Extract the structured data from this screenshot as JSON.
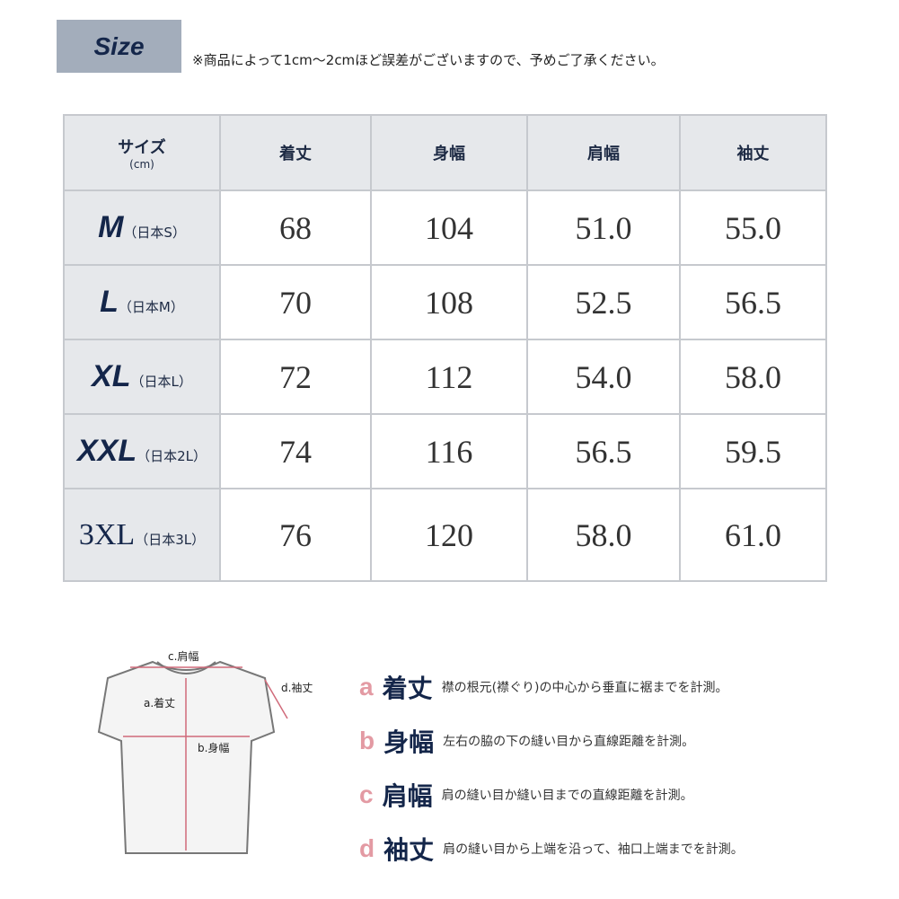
{
  "header": {
    "badge": "Size",
    "note": "※商品によって1cm〜2cmほど誤差がございますので、予めご了承ください。"
  },
  "table": {
    "size_label": "サイズ",
    "unit": "(cm)",
    "columns": [
      "着丈",
      "身幅",
      "肩幅",
      "袖丈"
    ],
    "rows": [
      {
        "size": "M",
        "jp": "（日本S）",
        "values": [
          "68",
          "104",
          "51.0",
          "55.0"
        ]
      },
      {
        "size": "L",
        "jp": "（日本M）",
        "values": [
          "70",
          "108",
          "52.5",
          "56.5"
        ]
      },
      {
        "size": "XL",
        "jp": "（日本L）",
        "values": [
          "72",
          "112",
          "54.0",
          "58.0"
        ]
      },
      {
        "size": "XXL",
        "jp": "（日本2L）",
        "values": [
          "74",
          "116",
          "56.5",
          "59.5"
        ]
      },
      {
        "size": "3XL",
        "jp": "（日本3L）",
        "values": [
          "76",
          "120",
          "58.0",
          "61.0"
        ]
      }
    ]
  },
  "diagram": {
    "labels": {
      "c": "c.肩幅",
      "a": "a.着丈",
      "b": "b.身幅",
      "d": "d.袖丈"
    }
  },
  "legend": [
    {
      "letter": "a",
      "term": "着丈",
      "desc": "襟の根元(襟ぐり)の中心から垂直に裾までを計測。"
    },
    {
      "letter": "b",
      "term": "身幅",
      "desc": "左右の脇の下の縫い目から直線距離を計測。"
    },
    {
      "letter": "c",
      "term": "肩幅",
      "desc": "肩の縫い目か縫い目までの直線距離を計測。"
    },
    {
      "letter": "d",
      "term": "袖丈",
      "desc": "肩の縫い目から上端を沿って、袖口上端までを計測。"
    }
  ],
  "colors": {
    "navy": "#14264a",
    "accent": "#e39aa3",
    "header_bg": "#e6e8eb"
  }
}
